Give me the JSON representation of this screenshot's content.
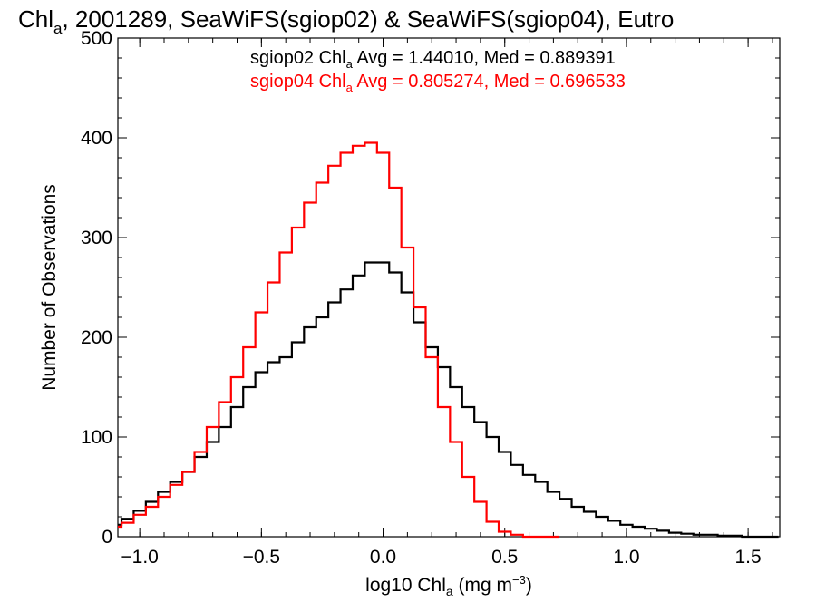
{
  "chart_data": {
    "type": "line",
    "title": {
      "pre": "Chl",
      "sub": "a",
      "post": ", 2001289, SeaWiFS(sgiop02) & SeaWiFS(sgiop04), Eutro"
    },
    "xlabel": {
      "pre": "log10 Chl",
      "sub": "a",
      "post": " (mg m",
      "sup": "−3",
      "end": ")"
    },
    "ylabel": "Number of Observations",
    "xlim": [
      -1.09,
      1.63
    ],
    "ylim": [
      0,
      500
    ],
    "x_ticks": [
      -1.0,
      -0.5,
      0.0,
      0.5,
      1.0,
      1.5
    ],
    "x_tick_labels": [
      "−1.0",
      "−0.5",
      "0.0",
      "0.5",
      "1.0",
      "1.5"
    ],
    "y_ticks": [
      0,
      100,
      200,
      300,
      400,
      500
    ],
    "y_tick_labels": [
      "0",
      "100",
      "200",
      "300",
      "400",
      "500"
    ],
    "step_style": "histogram",
    "series": [
      {
        "name_pre": "sgiop02 Chl",
        "name_sub": "a",
        "name_post": " Avg = 1.44010, Med = 0.889391",
        "color": "#000000",
        "x": [
          -1.1,
          -1.05,
          -1.0,
          -0.95,
          -0.9,
          -0.85,
          -0.8,
          -0.75,
          -0.7,
          -0.65,
          -0.6,
          -0.55,
          -0.5,
          -0.45,
          -0.4,
          -0.35,
          -0.3,
          -0.25,
          -0.2,
          -0.15,
          -0.1,
          -0.05,
          0.0,
          0.05,
          0.1,
          0.15,
          0.2,
          0.25,
          0.3,
          0.35,
          0.4,
          0.45,
          0.5,
          0.55,
          0.6,
          0.65,
          0.7,
          0.75,
          0.8,
          0.85,
          0.9,
          0.95,
          1.0,
          1.05,
          1.1,
          1.15,
          1.2,
          1.25,
          1.3,
          1.35,
          1.4,
          1.45,
          1.5,
          1.55,
          1.6
        ],
        "values": [
          12,
          18,
          26,
          35,
          45,
          55,
          65,
          80,
          95,
          110,
          130,
          150,
          165,
          175,
          180,
          195,
          210,
          220,
          235,
          248,
          262,
          275,
          275,
          265,
          245,
          215,
          190,
          170,
          150,
          130,
          115,
          100,
          85,
          72,
          62,
          55,
          45,
          38,
          30,
          25,
          20,
          16,
          12,
          10,
          8,
          6,
          4,
          3,
          2,
          2,
          1,
          1,
          0,
          0,
          0
        ]
      },
      {
        "name_pre": "sgiop04 Chl",
        "name_sub": "a",
        "name_post": " Avg = 0.805274, Med = 0.696533",
        "color": "#ff0000",
        "x": [
          -1.1,
          -1.05,
          -1.0,
          -0.95,
          -0.9,
          -0.85,
          -0.8,
          -0.75,
          -0.7,
          -0.65,
          -0.6,
          -0.55,
          -0.5,
          -0.45,
          -0.4,
          -0.35,
          -0.3,
          -0.25,
          -0.2,
          -0.15,
          -0.1,
          -0.05,
          0.0,
          0.05,
          0.1,
          0.15,
          0.2,
          0.25,
          0.3,
          0.35,
          0.4,
          0.45,
          0.5,
          0.55,
          0.6,
          0.65,
          0.7
        ],
        "values": [
          10,
          14,
          22,
          30,
          40,
          52,
          65,
          85,
          110,
          135,
          160,
          190,
          225,
          255,
          285,
          310,
          335,
          355,
          372,
          385,
          392,
          395,
          385,
          350,
          290,
          230,
          180,
          130,
          95,
          60,
          35,
          15,
          5,
          2,
          0,
          0,
          0
        ]
      }
    ]
  }
}
